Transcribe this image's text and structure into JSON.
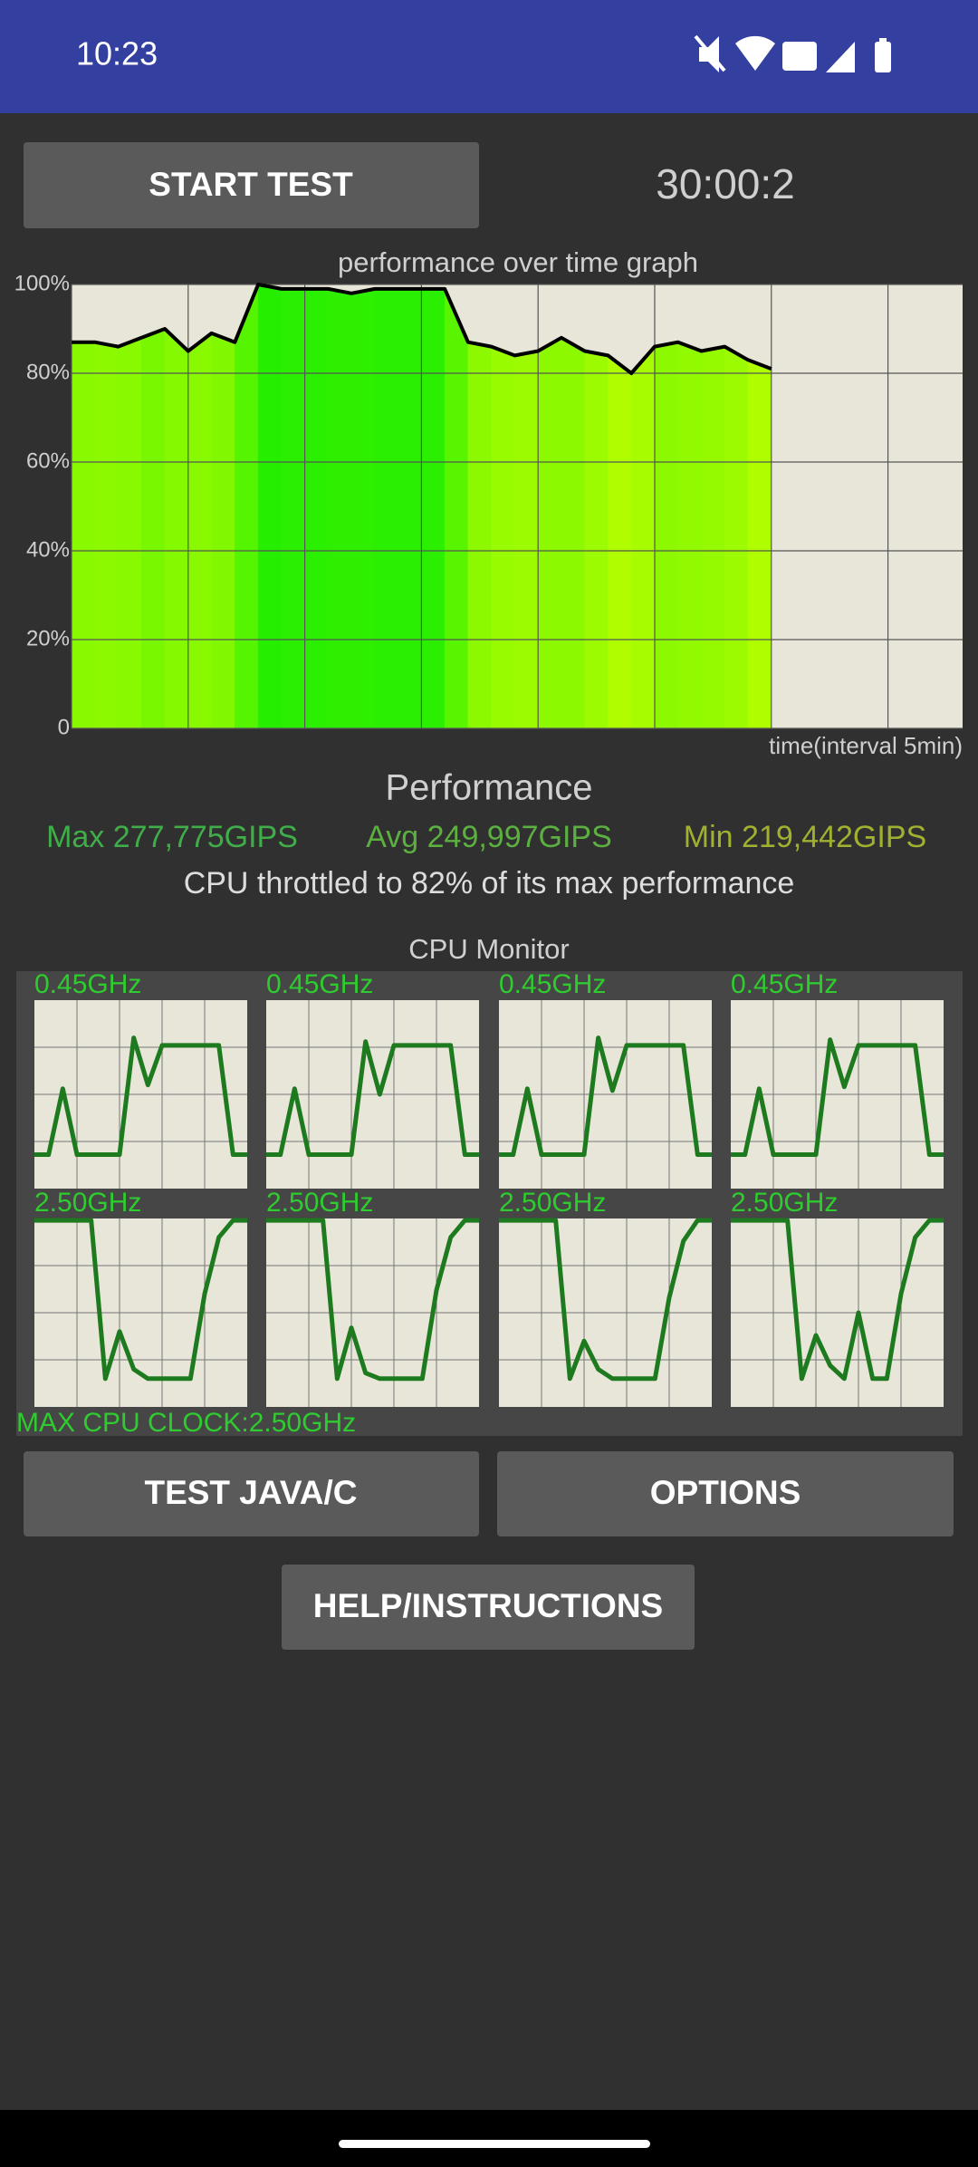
{
  "status_bar": {
    "time": "10:23"
  },
  "buttons": {
    "start": "START TEST",
    "test": "TEST JAVA/C",
    "options": "OPTIONS",
    "help": "HELP/INSTRUCTIONS"
  },
  "timer": "30:00:2",
  "chart_data": {
    "type": "area",
    "title": "performance over time graph",
    "xlabel": "time(interval 5min)",
    "x": [
      0,
      1,
      2,
      3,
      4,
      5,
      6,
      7,
      8,
      9,
      10,
      11,
      12,
      13,
      14,
      15,
      16,
      17,
      18,
      19,
      20,
      21,
      22,
      23,
      24,
      25,
      26,
      27,
      28,
      29,
      30
    ],
    "values": [
      87,
      87,
      86,
      88,
      90,
      85,
      89,
      87,
      100,
      99,
      99,
      99,
      98,
      99,
      99,
      99,
      99,
      87,
      86,
      84,
      85,
      88,
      85,
      84,
      80,
      86,
      87,
      85,
      86,
      83,
      81
    ],
    "xlim": [
      0,
      38.2
    ],
    "xticks": [
      0,
      5,
      10,
      15,
      20,
      25,
      30,
      35
    ],
    "ylim": [
      0,
      100
    ],
    "yticks": [
      0,
      {
        "value": 20,
        "label": "20%"
      },
      {
        "value": 40,
        "label": "40%"
      },
      {
        "value": 60,
        "label": "60%"
      },
      {
        "value": 80,
        "label": "80%"
      },
      {
        "value": 100,
        "label": "100%"
      }
    ],
    "grid": true,
    "line_color": "#000000"
  },
  "performance": {
    "title": "Performance",
    "max": "Max 277,775GIPS",
    "avg": "Avg 249,997GIPS",
    "min": "Min 219,442GIPS",
    "throttle": "CPU throttled to 82% of its max performance"
  },
  "cpu_monitor": {
    "title": "CPU Monitor",
    "max_clock": "MAX CPU CLOCK:2.50GHz",
    "ylim": [
      0,
      100
    ],
    "color": "#1e7a1e",
    "graphs": [
      {
        "label": "0.45GHz",
        "values": [
          18,
          18,
          53,
          18,
          18,
          18,
          18,
          80,
          55,
          76,
          76,
          76,
          76,
          76,
          18,
          18
        ]
      },
      {
        "label": "0.45GHz",
        "values": [
          18,
          18,
          53,
          18,
          18,
          18,
          18,
          78,
          50,
          76,
          76,
          76,
          76,
          76,
          18,
          18
        ]
      },
      {
        "label": "0.45GHz",
        "values": [
          18,
          18,
          53,
          18,
          18,
          18,
          18,
          80,
          52,
          76,
          76,
          76,
          76,
          76,
          18,
          18
        ]
      },
      {
        "label": "0.45GHz",
        "values": [
          18,
          18,
          53,
          18,
          18,
          18,
          18,
          79,
          54,
          76,
          76,
          76,
          76,
          76,
          18,
          18
        ]
      },
      {
        "label": "2.50GHz",
        "values": [
          99,
          99,
          99,
          99,
          99,
          15,
          40,
          20,
          15,
          15,
          15,
          15,
          60,
          90,
          99,
          99
        ]
      },
      {
        "label": "2.50GHz",
        "values": [
          99,
          99,
          99,
          99,
          99,
          15,
          42,
          18,
          15,
          15,
          15,
          15,
          62,
          90,
          99,
          99
        ]
      },
      {
        "label": "2.50GHz",
        "values": [
          99,
          99,
          99,
          99,
          99,
          15,
          35,
          20,
          15,
          15,
          15,
          15,
          58,
          88,
          99,
          99
        ]
      },
      {
        "label": "2.50GHz",
        "values": [
          99,
          99,
          99,
          99,
          99,
          15,
          38,
          22,
          15,
          50,
          15,
          15,
          60,
          90,
          99,
          99
        ]
      }
    ]
  }
}
